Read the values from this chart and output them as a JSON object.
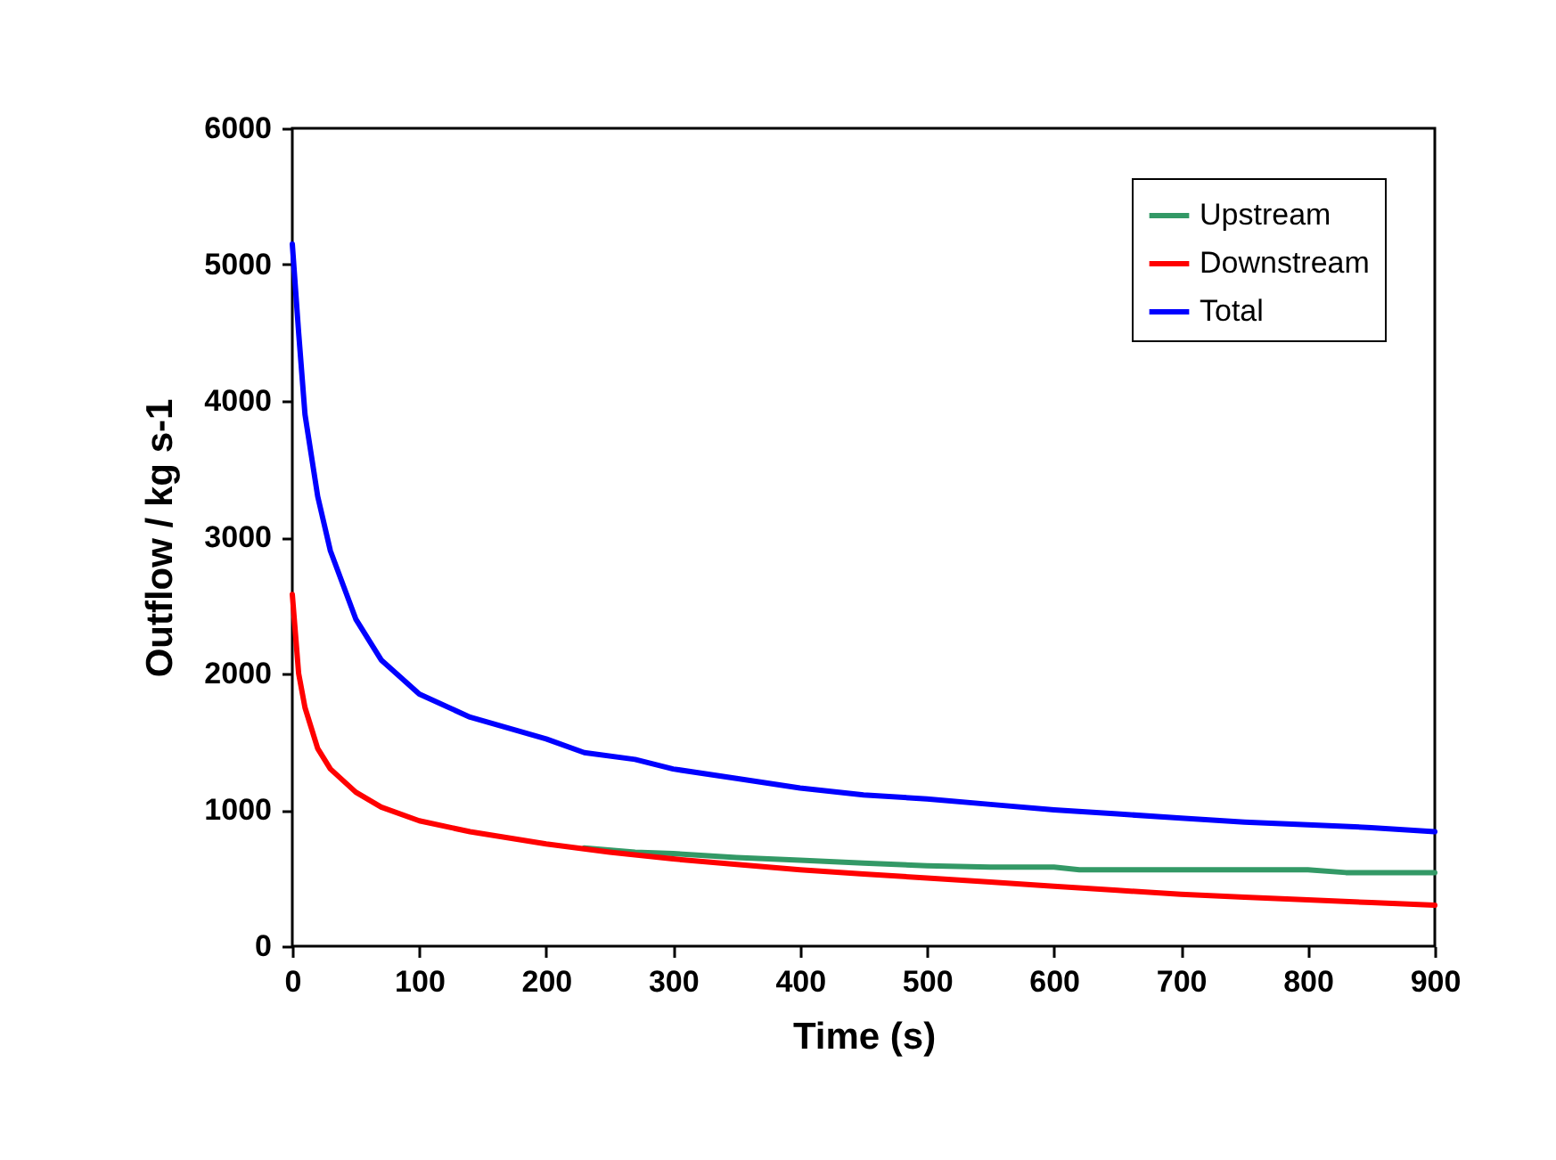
{
  "chart_data": {
    "type": "line",
    "xlabel": "Time (s)",
    "ylabel": "Outflow / kg s-1",
    "xlim": [
      0,
      900
    ],
    "xticks": [
      0,
      100,
      200,
      300,
      400,
      500,
      600,
      700,
      800,
      900
    ],
    "ylim": [
      0,
      6000
    ],
    "yticks": [
      0,
      1000,
      2000,
      3000,
      4000,
      5000,
      6000
    ],
    "grid": false,
    "legend": "top right",
    "marker": "none",
    "line_style": "solid",
    "series": [
      {
        "name": "Upstream",
        "color": "#339966",
        "x": [
          230,
          270,
          300,
          350,
          400,
          450,
          500,
          550,
          600,
          620,
          700,
          800,
          830,
          900
        ],
        "values": [
          720,
          690,
          680,
          650,
          630,
          610,
          590,
          580,
          580,
          560,
          560,
          560,
          540,
          540
        ]
      },
      {
        "name": "Downstream",
        "color": "#ff0000",
        "x": [
          0,
          5,
          10,
          20,
          30,
          50,
          70,
          100,
          140,
          200,
          250,
          300,
          350,
          400,
          450,
          500,
          550,
          600,
          650,
          700,
          750,
          800,
          850,
          900
        ],
        "values": [
          2580,
          2000,
          1750,
          1450,
          1300,
          1130,
          1020,
          920,
          840,
          750,
          690,
          640,
          600,
          560,
          530,
          500,
          470,
          440,
          410,
          380,
          360,
          340,
          320,
          300
        ]
      },
      {
        "name": "Total",
        "color": "#0000ff",
        "x": [
          0,
          5,
          10,
          20,
          30,
          50,
          70,
          100,
          140,
          200,
          230,
          270,
          300,
          350,
          400,
          450,
          500,
          550,
          600,
          650,
          700,
          750,
          800,
          850,
          900
        ],
        "values": [
          5150,
          4500,
          3900,
          3300,
          2900,
          2400,
          2100,
          1850,
          1680,
          1520,
          1420,
          1370,
          1300,
          1230,
          1160,
          1110,
          1080,
          1040,
          1000,
          970,
          940,
          910,
          890,
          870,
          840
        ]
      }
    ]
  }
}
